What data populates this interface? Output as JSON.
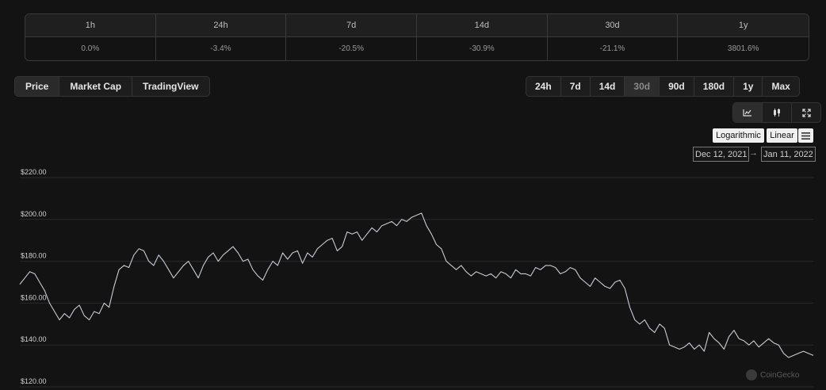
{
  "change_table": {
    "headers": [
      "1h",
      "24h",
      "7d",
      "14d",
      "30d",
      "1y"
    ],
    "values": [
      "0.0%",
      "-3.4%",
      "-20.5%",
      "-30.9%",
      "-21.1%",
      "3801.6%"
    ]
  },
  "metric_tabs": [
    "Price",
    "Market Cap",
    "TradingView"
  ],
  "active_metric": "Price",
  "range_tabs": [
    "24h",
    "7d",
    "14d",
    "30d",
    "90d",
    "180d",
    "1y",
    "Max"
  ],
  "active_range": "30d",
  "chart_type_icons": [
    "line-chart-icon",
    "candlestick-icon",
    "fullscreen-icon"
  ],
  "scale": {
    "log_label": "Logarithmic",
    "linear_label": "Linear"
  },
  "date_range": {
    "from": "Dec 12, 2021",
    "arrow": "→",
    "to": "Jan 11, 2022"
  },
  "watermark": "CoinGecko",
  "colors": {
    "background": "#131313",
    "line": "#c7cbd6",
    "grid": "#2a2a2a"
  },
  "chart_data": {
    "type": "line",
    "title": "",
    "xlabel": "",
    "ylabel": "",
    "x_range": [
      "Dec 12, 2021",
      "Jan 11, 2022"
    ],
    "ylim": [
      120,
      220
    ],
    "y_ticks": [
      "$220.00",
      "$200.00",
      "$180.00",
      "$160.00",
      "$140.00",
      "$120.00"
    ],
    "y_tick_values": [
      220,
      200,
      180,
      160,
      140,
      120
    ],
    "grid": true,
    "series": [
      {
        "values": [
          169,
          172,
          175,
          174,
          170,
          166,
          160,
          156,
          152,
          155,
          153,
          157,
          159,
          154,
          152,
          156,
          155,
          160,
          158,
          168,
          176,
          178,
          177,
          183,
          186,
          185,
          180,
          178,
          183,
          180,
          176,
          172,
          175,
          178,
          180,
          176,
          172,
          178,
          182,
          184,
          180,
          183,
          185,
          187,
          184,
          180,
          181,
          176,
          173,
          171,
          176,
          180,
          178,
          184,
          181,
          184,
          185,
          179,
          184,
          182,
          186,
          188,
          190,
          191,
          185,
          187,
          194,
          193,
          194,
          190,
          193,
          196,
          194,
          197,
          198,
          199,
          197,
          200,
          199,
          201,
          202,
          203,
          197,
          193,
          188,
          186,
          180,
          178,
          176,
          178,
          175,
          173,
          175,
          174,
          173,
          174,
          172,
          175,
          174,
          172,
          176,
          174,
          174,
          173,
          177,
          176,
          178,
          178,
          177,
          174,
          175,
          177,
          176,
          172,
          170,
          168,
          172,
          170,
          168,
          167,
          170,
          171,
          167,
          158,
          152,
          150,
          152,
          148,
          146,
          150,
          148,
          140,
          139,
          138,
          139,
          141,
          138,
          140,
          137,
          146,
          143,
          141,
          138,
          144,
          147,
          143,
          142,
          140,
          142,
          139,
          141,
          143,
          141,
          140,
          136,
          134,
          135,
          136,
          137,
          136,
          135
        ]
      }
    ]
  }
}
